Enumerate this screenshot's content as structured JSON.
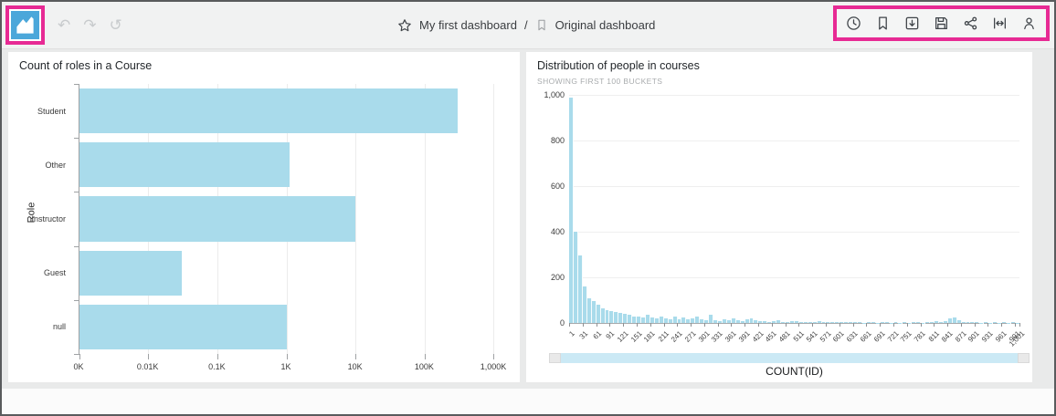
{
  "toolbar": {
    "undo_icon": "↶",
    "redo_icon": "↷",
    "reset_icon": "↺",
    "breadcrumb": {
      "dashboard_name": "My first dashboard",
      "separator": "/",
      "view_name": "Original dashboard"
    },
    "right_icons": [
      "clock",
      "bookmark",
      "export",
      "save",
      "share",
      "fit-width",
      "user"
    ]
  },
  "colors": {
    "bar_fill": "#A9DBEB",
    "highlight_pink": "#E72A94",
    "logo_blue": "#4BA7DA",
    "scrollbar_track": "#CBE9F5"
  },
  "chart_data": [
    {
      "type": "bar",
      "orientation": "horizontal",
      "title": "Count of roles in a Course",
      "ylabel": "Role",
      "xlabel": "",
      "categories": [
        "Student",
        "Other",
        "Instructor",
        "Guest",
        "null"
      ],
      "values": [
        300000,
        1100,
        10000,
        30,
        1000
      ],
      "x_scale": "log",
      "x_ticks": [
        "0K",
        "0.01K",
        "0.1K",
        "1K",
        "10K",
        "100K",
        "1,000K"
      ],
      "grid": true,
      "legend": "none"
    },
    {
      "type": "bar",
      "subtype": "histogram",
      "title": "Distribution of people in courses",
      "subtitle": "SHOWING FIRST 100 BUCKETS",
      "xlabel": "COUNT(ID)",
      "ylim": [
        0,
        1000
      ],
      "y_ticks": [
        "1,000",
        "800",
        "600",
        "400",
        "200",
        "0"
      ],
      "x_tick_labels": [
        "1",
        "31",
        "61",
        "91",
        "121",
        "151",
        "181",
        "211",
        "241",
        "271",
        "301",
        "331",
        "361",
        "391",
        "421",
        "451",
        "481",
        "511",
        "541",
        "571",
        "601",
        "631",
        "661",
        "691",
        "721",
        "751",
        "781",
        "811",
        "841",
        "871",
        "901",
        "931",
        "961",
        "991",
        "1,001"
      ],
      "values": [
        990,
        400,
        295,
        160,
        110,
        95,
        80,
        65,
        58,
        52,
        48,
        45,
        40,
        35,
        30,
        28,
        26,
        38,
        24,
        22,
        30,
        20,
        18,
        28,
        16,
        24,
        15,
        22,
        30,
        18,
        14,
        38,
        12,
        10,
        16,
        12,
        20,
        14,
        10,
        18,
        22,
        12,
        8,
        10,
        6,
        8,
        12,
        6,
        5,
        8,
        10,
        6,
        5,
        4,
        6,
        8,
        5,
        4,
        3,
        5,
        4,
        3,
        5,
        4,
        3,
        2,
        4,
        3,
        2,
        3,
        4,
        2,
        3,
        2,
        3,
        2,
        4,
        3,
        2,
        3,
        5,
        8,
        6,
        10,
        22,
        25,
        12,
        5,
        4,
        3,
        4,
        2,
        3,
        2,
        3,
        2,
        4,
        2,
        3,
        2
      ],
      "grid": true,
      "legend": "none"
    }
  ]
}
